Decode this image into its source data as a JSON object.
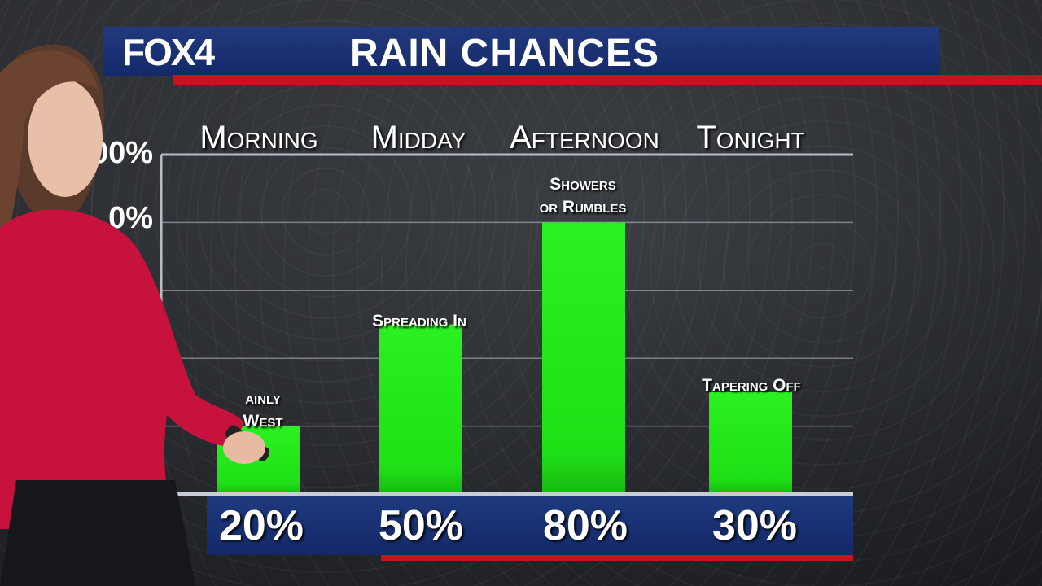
{
  "logo": "FOX4",
  "title": "RAIN CHANCES",
  "colors": {
    "bar": "#22e619",
    "header_blue": "#1a3373",
    "accent_red": "#c4141d"
  },
  "y_tick_labels": [
    "00%",
    "0%"
  ],
  "chart_data": {
    "type": "bar",
    "categories": [
      "Morning",
      "Midday",
      "Afternoon",
      "Tonight"
    ],
    "values": [
      20,
      50,
      80,
      30
    ],
    "value_labels": [
      "20%",
      "50%",
      "80%",
      "30%"
    ],
    "annotations": [
      "ainly\nWest",
      "Spreading In",
      "Showers\nor Rumbles",
      "Tapering Off"
    ],
    "ylim": [
      0,
      100
    ],
    "grid": true
  }
}
